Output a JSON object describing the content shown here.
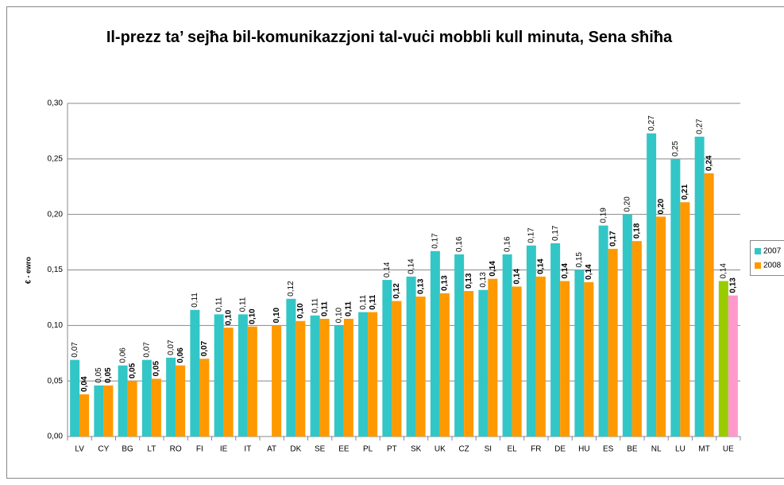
{
  "chart_data": {
    "type": "bar",
    "title": "Il-prezz ta’ sejħa bil-komunikazzjoni tal-vuċi mobbli kull minuta, Sena sħiħa",
    "ylabel": "€ - ewro",
    "categories": [
      "LV",
      "CY",
      "BG",
      "LT",
      "RO",
      "FI",
      "IE",
      "IT",
      "AT",
      "DK",
      "SE",
      "EE",
      "PL",
      "PT",
      "SK",
      "UK",
      "CZ",
      "SI",
      "EL",
      "FR",
      "DE",
      "HU",
      "ES",
      "BE",
      "NL",
      "LU",
      "MT",
      "UE"
    ],
    "series": [
      {
        "name": "2007",
        "color": "#33c6c6",
        "bold": false,
        "colors": [
          "#33c6c6",
          "#33c6c6",
          "#33c6c6",
          "#33c6c6",
          "#33c6c6",
          "#33c6c6",
          "#33c6c6",
          "#33c6c6",
          "#33c6c6",
          "#33c6c6",
          "#33c6c6",
          "#33c6c6",
          "#33c6c6",
          "#33c6c6",
          "#33c6c6",
          "#33c6c6",
          "#33c6c6",
          "#33c6c6",
          "#33c6c6",
          "#33c6c6",
          "#33c6c6",
          "#33c6c6",
          "#33c6c6",
          "#33c6c6",
          "#33c6c6",
          "#33c6c6",
          "#33c6c6",
          "#99cc00"
        ],
        "values": [
          0.069,
          0.046,
          0.064,
          0.069,
          0.071,
          0.114,
          0.11,
          0.11,
          null,
          0.124,
          0.109,
          0.1,
          0.112,
          0.141,
          0.144,
          0.167,
          0.164,
          0.132,
          0.164,
          0.172,
          0.174,
          0.15,
          0.19,
          0.2,
          0.273,
          0.25,
          0.27,
          0.14
        ],
        "value_labels": [
          "0,07",
          "0,05",
          "0,06",
          "0,07",
          "0,07",
          "0,11",
          "0,11",
          "0,11",
          null,
          "0,12",
          "0,11",
          "0,10",
          "0,11",
          "0,14",
          "0,14",
          "0,17",
          "0,16",
          "0,13",
          "0,16",
          "0,17",
          "0,17",
          "0,15",
          "0,19",
          "0,20",
          "0,27",
          "0,25",
          "0,27",
          "0,14"
        ]
      },
      {
        "name": "2008",
        "color": "#ff9900",
        "bold": true,
        "colors": [
          "#ff9900",
          "#ff9900",
          "#ff9900",
          "#ff9900",
          "#ff9900",
          "#ff9900",
          "#ff9900",
          "#ff9900",
          "#ff9900",
          "#ff9900",
          "#ff9900",
          "#ff9900",
          "#ff9900",
          "#ff9900",
          "#ff9900",
          "#ff9900",
          "#ff9900",
          "#ff9900",
          "#ff9900",
          "#ff9900",
          "#ff9900",
          "#ff9900",
          "#ff9900",
          "#ff9900",
          "#ff9900",
          "#ff9900",
          "#ff9900",
          "#ff99cc"
        ],
        "values": [
          0.038,
          0.046,
          0.05,
          0.052,
          0.064,
          0.07,
          0.098,
          0.099,
          0.1,
          0.104,
          0.106,
          0.106,
          0.112,
          0.122,
          0.126,
          0.129,
          0.131,
          0.142,
          0.135,
          0.144,
          0.14,
          0.139,
          0.169,
          0.176,
          0.198,
          0.211,
          0.237,
          0.127
        ],
        "value_labels": [
          "0,04",
          "0,05",
          "0,05",
          "0,05",
          "0,06",
          "0,07",
          "0,10",
          "0,10",
          "0,10",
          "0,10",
          "0,11",
          "0,11",
          "0,11",
          "0,12",
          "0,13",
          "0,13",
          "0,13",
          "0,14",
          "0,14",
          "0,14",
          "0,14",
          "0,14",
          "0,17",
          "0,18",
          "0,20",
          "0,21",
          "0,24",
          "0,13"
        ]
      }
    ],
    "ylim": [
      0,
      0.3
    ],
    "yticks": [
      {
        "value": 0,
        "label": "0,00"
      },
      {
        "value": 0.05,
        "label": "0,05"
      },
      {
        "value": 0.1,
        "label": "0,10"
      },
      {
        "value": 0.15,
        "label": "0,15"
      },
      {
        "value": 0.2,
        "label": "0,20"
      },
      {
        "value": 0.25,
        "label": "0,25"
      },
      {
        "value": 0.3,
        "label": "0,30"
      }
    ],
    "grid": true,
    "legend": "right"
  }
}
